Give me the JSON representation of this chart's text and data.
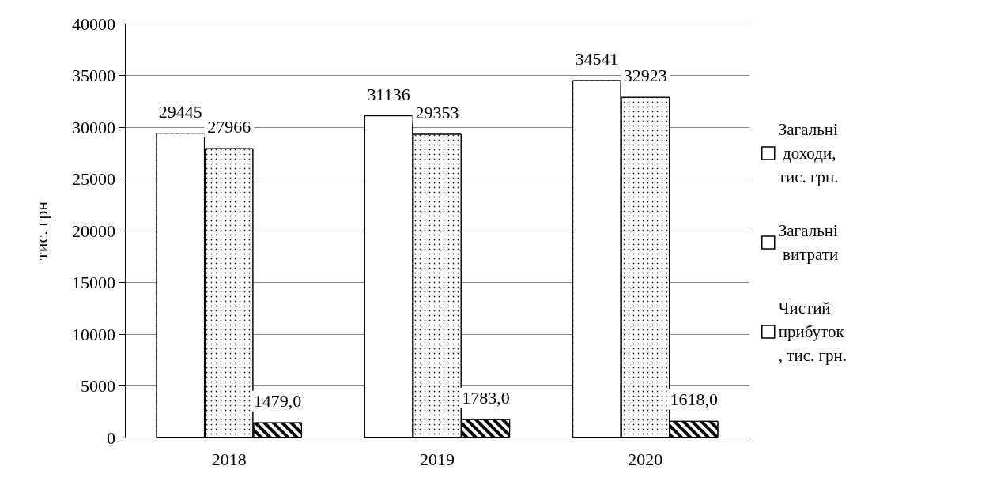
{
  "chart_data": {
    "type": "bar",
    "ylabel": "тис. грн",
    "categories": [
      "2018",
      "2019",
      "2020"
    ],
    "series": [
      {
        "name": "Загальні доходи, тис. грн.",
        "color": "#000000",
        "values": [
          29445,
          31136,
          34541
        ],
        "value_labels": [
          "29445",
          "31136",
          "34541"
        ]
      },
      {
        "name": "Загальні витрати",
        "color": "#000000",
        "values": [
          27966,
          29353,
          32923
        ],
        "value_labels": [
          "27966",
          "29353",
          "32923"
        ]
      },
      {
        "name": "Чистий прибуток, тис. грн.",
        "color": "#000000",
        "values": [
          1479,
          1783,
          1618
        ],
        "value_labels": [
          "1479,0",
          "1783,0",
          "1618,0"
        ]
      }
    ],
    "ylim": [
      0,
      40000
    ],
    "yticks": [
      0,
      5000,
      10000,
      15000,
      20000,
      25000,
      30000,
      35000,
      40000
    ],
    "grid": "y",
    "legend": "right"
  }
}
